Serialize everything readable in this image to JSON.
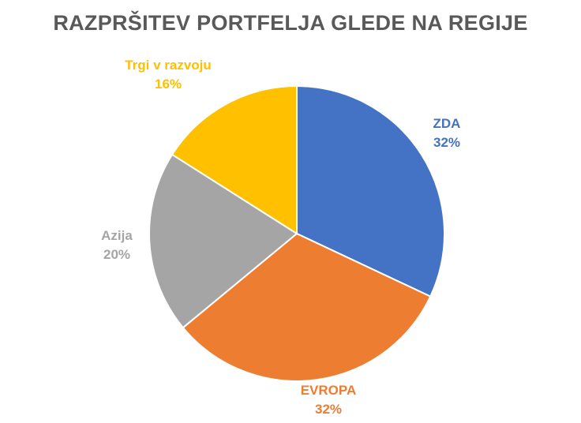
{
  "chart_data": {
    "type": "pie",
    "title": "RAZPRŠITEV PORTFELJA GLEDE NA REGIJE",
    "slices": [
      {
        "label": "ZDA",
        "value": 32,
        "value_label": "32%",
        "color": "#4472C4"
      },
      {
        "label": "EVROPA",
        "value": 32,
        "value_label": "32%",
        "color": "#ED7D31"
      },
      {
        "label": "Azija",
        "value": 20,
        "value_label": "20%",
        "color": "#A5A5A5"
      },
      {
        "label": "Trgi v razvoju",
        "value": 16,
        "value_label": "16%",
        "color": "#FFC000"
      }
    ],
    "start_angle_deg": 0,
    "direction": "clockwise"
  }
}
